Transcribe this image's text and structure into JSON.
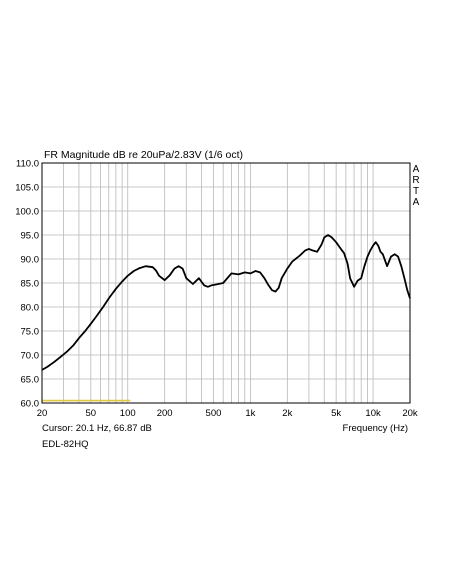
{
  "chart_data": {
    "type": "line",
    "title": "FR Magnitude dB re 20uPa/2.83V (1/6 oct)",
    "xlabel": "Frequency (Hz)",
    "ylabel": "",
    "x_scale": "log",
    "xlim": [
      20,
      20000
    ],
    "ylim": [
      60,
      110
    ],
    "grid": true,
    "y_ticks": [
      {
        "value": 60,
        "label": "60.0"
      },
      {
        "value": 65,
        "label": "65.0"
      },
      {
        "value": 70,
        "label": "70.0"
      },
      {
        "value": 75,
        "label": "75.0"
      },
      {
        "value": 80,
        "label": "80.0"
      },
      {
        "value": 85,
        "label": "85.0"
      },
      {
        "value": 90,
        "label": "90.0"
      },
      {
        "value": 95,
        "label": "95.0"
      },
      {
        "value": 100,
        "label": "100.0"
      },
      {
        "value": 105,
        "label": "105.0"
      },
      {
        "value": 110,
        "label": "110.0"
      }
    ],
    "x_ticks": [
      {
        "value": 20,
        "label": "20"
      },
      {
        "value": 50,
        "label": "50"
      },
      {
        "value": 100,
        "label": "100"
      },
      {
        "value": 200,
        "label": "200"
      },
      {
        "value": 500,
        "label": "500"
      },
      {
        "value": 1000,
        "label": "1k"
      },
      {
        "value": 2000,
        "label": "2k"
      },
      {
        "value": 5000,
        "label": "5k"
      },
      {
        "value": 10000,
        "label": "10k"
      },
      {
        "value": 20000,
        "label": "20k"
      }
    ],
    "brand": "ARTA",
    "cursor_text": "Cursor: 20.1 Hz, 66.87 dB",
    "label": "EDL-82HQ",
    "colors": {
      "curve": "#000000",
      "grid": "#b8b8b8",
      "marker": "#e0c840"
    },
    "marker_band": {
      "x_from": 20,
      "x_to": 105,
      "y": 60.5
    },
    "series": [
      {
        "x": [
          20,
          22,
          25,
          28,
          32,
          36,
          40,
          45,
          50,
          56,
          63,
          71,
          80,
          90,
          100,
          112,
          125,
          140,
          160,
          170,
          180,
          200,
          220,
          240,
          260,
          280,
          300,
          340,
          380,
          420,
          450,
          480,
          530,
          600,
          700,
          800,
          850,
          900,
          1000,
          1100,
          1200,
          1300,
          1400,
          1500,
          1600,
          1700,
          1800,
          2000,
          2200,
          2500,
          2800,
          3000,
          3200,
          3500,
          3800,
          4000,
          4300,
          4600,
          5000,
          5500,
          5800,
          6200,
          6500,
          7000,
          7500,
          8000,
          8500,
          9000,
          9500,
          10000,
          10500,
          11000,
          11500,
          12000,
          13000,
          14000,
          15000,
          16000,
          17000,
          18000,
          19000,
          20000
        ],
        "y": [
          66.9,
          67.5,
          68.5,
          69.5,
          70.7,
          72.0,
          73.5,
          75.0,
          76.5,
          78.2,
          80.0,
          82.0,
          83.8,
          85.3,
          86.5,
          87.5,
          88.1,
          88.5,
          88.3,
          87.6,
          86.5,
          85.6,
          86.6,
          88.0,
          88.5,
          88.0,
          86.0,
          84.8,
          86.0,
          84.5,
          84.2,
          84.5,
          84.7,
          85.0,
          87.0,
          86.8,
          87.0,
          87.2,
          87.0,
          87.5,
          87.2,
          86.0,
          84.6,
          83.5,
          83.2,
          84.0,
          86.0,
          88.0,
          89.5,
          90.6,
          91.8,
          92.1,
          91.8,
          91.5,
          93.0,
          94.5,
          95.0,
          94.5,
          93.5,
          92.0,
          91.2,
          89.0,
          86.0,
          84.2,
          85.5,
          86.0,
          88.5,
          90.5,
          91.8,
          92.8,
          93.5,
          92.8,
          91.5,
          91.0,
          88.5,
          90.5,
          91.0,
          90.5,
          88.5,
          86.0,
          83.5,
          81.8
        ]
      }
    ]
  }
}
